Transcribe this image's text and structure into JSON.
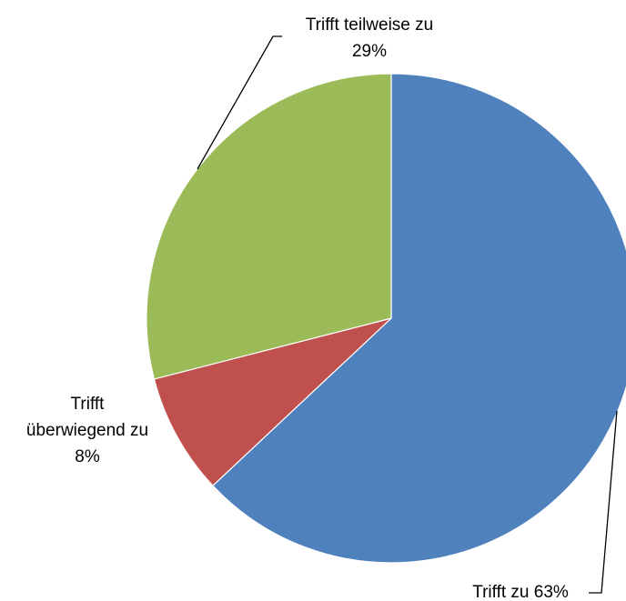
{
  "chart_data": {
    "type": "pie",
    "title": "",
    "slices": [
      {
        "label": "Trifft zu",
        "value": 63,
        "display": "63%",
        "color": "#4F81BD"
      },
      {
        "label": "Trifft überwiegend zu",
        "value": 8,
        "display": "8%",
        "color": "#C0504D"
      },
      {
        "label": "Trifft teilweise zu",
        "value": 29,
        "display": "29%",
        "color": "#9BBB59"
      }
    ],
    "start": "12 o'clock",
    "direction": "clockwise",
    "legend": "none",
    "data_labels": [
      {
        "lines": [
          "Trifft zu 63%"
        ]
      },
      {
        "lines": [
          "Trifft",
          "überwiegend zu",
          "8%"
        ]
      },
      {
        "lines": [
          "Trifft teilweise zu",
          "29%"
        ]
      }
    ]
  }
}
